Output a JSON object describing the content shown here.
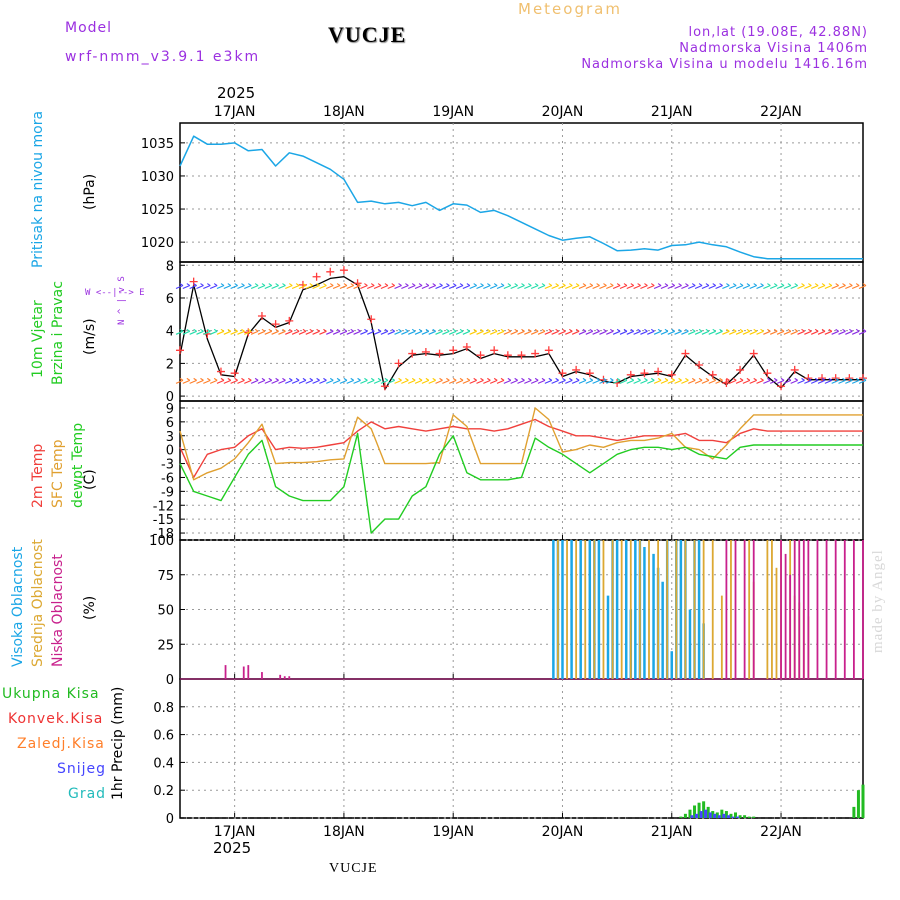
{
  "header": {
    "model_label": "Model",
    "model_name": "wrf-nmm_v3.9.1  e3km",
    "station": "VUCJE",
    "meteogram": "Meteogram",
    "lonlat": "lon,lat (19.08E, 42.88N)",
    "elevation": "Nadmorska Visina 1406m",
    "model_elevation": "Nadmorska Visina u modelu 1416.16m",
    "watermark": "made by Angel",
    "footer_station": "VUCJE"
  },
  "colors": {
    "pressure": "#1ba6e6",
    "gust": "#ff3b3b",
    "wind": "#000000",
    "t2m": "#f0403c",
    "sfc": "#e0a030",
    "dew": "#22cc22",
    "high": "#1ba6e6",
    "mid": "#dca832",
    "low": "#c8208c",
    "total": "#22bb22",
    "conv": "#ee3333",
    "frozen": "#ff7f2a",
    "snow": "#4545ff",
    "graupel": "#22bbbb",
    "grid": "#9a9a9a",
    "label_purple": "#9b30e0"
  },
  "axis": {
    "year": "2025",
    "dates": [
      "17JAN",
      "18JAN",
      "19JAN",
      "20JAN",
      "21JAN",
      "22JAN"
    ]
  },
  "chart_data": [
    {
      "type": "line",
      "id": "pressure",
      "title": "Pritisak na nivou mora",
      "ylabel": "(hPa)",
      "ylim": [
        1017,
        1038
      ],
      "yticks": [
        "1035",
        "1030",
        "1025",
        "1020"
      ],
      "x_hours": [
        0,
        3,
        6,
        9,
        12,
        15,
        18,
        21,
        24,
        27,
        30,
        33,
        36,
        39,
        42,
        45,
        48,
        51,
        54,
        57,
        60,
        63,
        66,
        69,
        72,
        75,
        78,
        81,
        84,
        87,
        90,
        93,
        96,
        99,
        102,
        105,
        108,
        111,
        114,
        117,
        120,
        123,
        126,
        129,
        132,
        135,
        138,
        141,
        144,
        147,
        150
      ],
      "values": [
        1031.5,
        1036.0,
        1034.8,
        1034.8,
        1035.0,
        1033.8,
        1034.0,
        1031.5,
        1033.5,
        1033.0,
        1032.0,
        1031.0,
        1029.5,
        1026.0,
        1026.2,
        1025.8,
        1026.0,
        1025.5,
        1026.0,
        1024.8,
        1025.8,
        1025.6,
        1024.5,
        1024.8,
        1024.0,
        1023.0,
        1022.0,
        1021.0,
        1020.3,
        1020.6,
        1020.8,
        1019.8,
        1018.7,
        1018.8,
        1019.0,
        1018.8,
        1019.5,
        1019.6,
        1020.0,
        1019.6,
        1019.3,
        1018.5,
        1017.8,
        1017.5,
        1017.5,
        1017.5,
        1017.5,
        1017.5,
        1017.5,
        1017.5,
        1017.5
      ]
    },
    {
      "type": "line",
      "id": "wind",
      "title": "10m Vjetar Brzina i Pravac",
      "ylabel": "(m/s)",
      "compass": "W <--|--> E",
      "compass_ns": "N ^ | v S",
      "ylim": [
        -0.3,
        8.2
      ],
      "yticks": [
        "8",
        "6",
        "4",
        "2",
        "0"
      ],
      "x_hours": [
        0,
        3,
        6,
        9,
        12,
        15,
        18,
        21,
        24,
        27,
        30,
        33,
        36,
        39,
        42,
        45,
        48,
        51,
        54,
        57,
        60,
        63,
        66,
        69,
        72,
        75,
        78,
        81,
        84,
        87,
        90,
        93,
        96,
        99,
        102,
        105,
        108,
        111,
        114,
        117,
        120,
        123,
        126,
        129,
        132,
        135,
        138,
        141,
        144,
        147,
        150
      ],
      "series": [
        {
          "name": "Wind speed",
          "values": [
            2.5,
            6.8,
            3.5,
            1.3,
            1.2,
            3.8,
            4.8,
            4.2,
            4.5,
            6.5,
            6.8,
            7.2,
            7.3,
            6.8,
            4.5,
            0.4,
            1.8,
            2.5,
            2.6,
            2.5,
            2.6,
            2.9,
            2.3,
            2.6,
            2.4,
            2.4,
            2.4,
            2.6,
            1.2,
            1.5,
            1.3,
            0.9,
            0.8,
            1.2,
            1.3,
            1.4,
            1.2,
            2.5,
            1.8,
            1.2,
            0.7,
            1.5,
            2.5,
            1.2,
            0.5,
            1.5,
            1.0,
            1.0,
            1.0,
            1.0,
            1.0
          ]
        },
        {
          "name": "Gust",
          "values": [
            2.8,
            7.0,
            3.8,
            1.5,
            1.4,
            3.9,
            4.9,
            4.4,
            4.6,
            6.8,
            7.3,
            7.6,
            7.7,
            6.9,
            4.7,
            0.6,
            2.0,
            2.6,
            2.7,
            2.6,
            2.8,
            3.0,
            2.5,
            2.8,
            2.5,
            2.5,
            2.6,
            2.8,
            1.4,
            1.6,
            1.4,
            1.0,
            0.8,
            1.3,
            1.4,
            1.5,
            1.3,
            2.6,
            1.9,
            1.3,
            0.8,
            1.6,
            2.6,
            1.4,
            0.6,
            1.6,
            1.1,
            1.1,
            1.1,
            1.1,
            1.1
          ]
        }
      ]
    },
    {
      "type": "line",
      "id": "temperature",
      "titles": [
        "2m Temp",
        "SFC Temp",
        "dewpt Temp"
      ],
      "ylabel": "(C)",
      "ylim": [
        -19.5,
        10.5
      ],
      "yticks": [
        "9",
        "6",
        "3",
        "0",
        "-3",
        "-6",
        "-9",
        "-12",
        "-15",
        "-18"
      ],
      "x_hours": [
        0,
        3,
        6,
        9,
        12,
        15,
        18,
        21,
        24,
        27,
        30,
        33,
        36,
        39,
        42,
        45,
        48,
        51,
        54,
        57,
        60,
        63,
        66,
        69,
        72,
        75,
        78,
        81,
        84,
        87,
        90,
        93,
        96,
        99,
        102,
        105,
        108,
        111,
        114,
        117,
        120,
        123,
        126,
        129,
        132,
        135,
        138,
        141,
        144,
        147,
        150
      ],
      "series": [
        {
          "name": "2m Temp",
          "values": [
            0.5,
            -6.0,
            -1.0,
            0.0,
            0.5,
            3.0,
            4.5,
            0.0,
            0.5,
            0.3,
            0.5,
            1.0,
            1.5,
            4.0,
            6.0,
            4.5,
            5.0,
            4.5,
            4.0,
            4.5,
            5.0,
            4.5,
            4.5,
            4.0,
            4.5,
            5.5,
            6.5,
            5.0,
            4.0,
            3.0,
            3.0,
            2.5,
            2.0,
            2.5,
            3.0,
            3.0,
            3.0,
            3.5,
            2.0,
            2.0,
            1.5,
            3.5,
            4.5,
            4.0,
            4.0,
            4.0,
            4.0,
            4.0,
            4.0,
            4.0,
            4.0
          ]
        },
        {
          "name": "SFC Temp",
          "values": [
            4.0,
            -6.5,
            -5.0,
            -4.0,
            -2.0,
            1.5,
            5.5,
            -3.0,
            -2.8,
            -2.8,
            -2.6,
            -2.2,
            -2.0,
            7.0,
            4.5,
            -3.0,
            -3.0,
            -3.0,
            -3.0,
            -2.8,
            7.5,
            5.0,
            -3.0,
            -3.0,
            -3.0,
            -3.0,
            9.0,
            6.5,
            -0.5,
            0.0,
            1.0,
            0.5,
            1.5,
            2.0,
            2.0,
            2.5,
            3.5,
            0.5,
            0.0,
            -2.0,
            1.0,
            4.5,
            7.5,
            7.5,
            7.5,
            7.5,
            7.5,
            7.5,
            7.5,
            7.5,
            7.5
          ]
        },
        {
          "name": "dewpt Temp",
          "values": [
            -3.0,
            -9.0,
            -10.0,
            -11.0,
            -6.0,
            -1.0,
            2.0,
            -8.0,
            -10.0,
            -11.0,
            -11.0,
            -11.0,
            -8.0,
            3.5,
            -18.0,
            -15.0,
            -15.0,
            -10.0,
            -8.0,
            -1.0,
            3.0,
            -5.0,
            -6.5,
            -6.5,
            -6.5,
            -6.0,
            2.5,
            0.5,
            -1.0,
            -3.0,
            -5.0,
            -3.0,
            -1.0,
            0.0,
            0.5,
            0.5,
            0.0,
            0.5,
            -1.0,
            -1.5,
            -2.0,
            0.5,
            1.0,
            1.0,
            1.0,
            1.0,
            1.0,
            1.0,
            1.0,
            1.0,
            1.0
          ]
        }
      ]
    },
    {
      "type": "bar",
      "id": "clouds",
      "titles": [
        "Visoka Oblacnost",
        "Srednja Oblacnost",
        "Niska Oblacnost"
      ],
      "ylabel": "(%)",
      "ylim": [
        0,
        100
      ],
      "yticks": [
        "100",
        "75",
        "50",
        "25",
        "0"
      ],
      "series": [
        {
          "name": "Visoka",
          "x_hours": [
            82,
            83,
            84,
            86,
            88,
            90,
            91,
            92,
            94,
            95,
            96,
            98,
            99,
            100,
            101,
            102,
            104,
            105,
            106,
            107,
            108,
            109,
            110,
            111,
            112,
            113,
            114,
            115
          ],
          "values": [
            100,
            100,
            100,
            100,
            100,
            100,
            100,
            100,
            60,
            100,
            100,
            100,
            50,
            100,
            100,
            95,
            90,
            80,
            70,
            100,
            20,
            100,
            100,
            100,
            50,
            100,
            100,
            40
          ]
        },
        {
          "name": "Srednja",
          "x_hours": [
            83,
            85,
            87,
            89,
            91,
            93,
            95,
            97,
            99,
            101,
            103,
            105,
            107,
            109,
            111,
            113,
            115,
            117,
            119,
            121,
            125,
            126,
            129,
            130,
            131,
            132,
            134,
            135,
            136,
            137,
            138
          ],
          "values": [
            100,
            100,
            100,
            100,
            100,
            100,
            100,
            100,
            100,
            100,
            100,
            100,
            100,
            100,
            100,
            100,
            100,
            100,
            60,
            100,
            100,
            70,
            100,
            100,
            80,
            100,
            100,
            60,
            55,
            50,
            45
          ]
        },
        {
          "name": "Niska",
          "x_hours": [
            10,
            14,
            15,
            18,
            22,
            23,
            24,
            120,
            122,
            124,
            126,
            132,
            133,
            134,
            135,
            136,
            137,
            138,
            140,
            142,
            144,
            146,
            148,
            150
          ],
          "values": [
            10,
            9,
            10,
            5,
            3,
            2,
            2,
            100,
            100,
            100,
            100,
            100,
            90,
            75,
            100,
            100,
            100,
            100,
            100,
            100,
            100,
            100,
            100,
            100
          ]
        }
      ]
    },
    {
      "type": "bar",
      "id": "precip",
      "titles": [
        "Ukupna Kisa",
        "Konvek.Kisa",
        "Zaledj.Kisa",
        "Snijeg",
        "Grad"
      ],
      "ylabel": "1hr Precip (mm)",
      "ylim": [
        0,
        1.0
      ],
      "yticks": [
        "0.8",
        "0.6",
        "0.4",
        "0.2",
        "0"
      ],
      "series": [
        {
          "name": "Ukupna Kisa",
          "x_hours": [
            110,
            111,
            112,
            113,
            114,
            115,
            116,
            117,
            118,
            119,
            120,
            121,
            122,
            123,
            124,
            125,
            126,
            148,
            149,
            150
          ],
          "values": [
            0.01,
            0.03,
            0.06,
            0.09,
            0.11,
            0.12,
            0.08,
            0.05,
            0.04,
            0.06,
            0.05,
            0.03,
            0.04,
            0.02,
            0.02,
            0.01,
            0.01,
            0.08,
            0.2,
            0.24
          ]
        },
        {
          "name": "Snijeg",
          "x_hours": [
            112,
            113,
            114,
            115,
            116,
            117,
            118,
            119,
            120,
            121,
            122
          ],
          "values": [
            0.02,
            0.03,
            0.05,
            0.06,
            0.04,
            0.03,
            0.02,
            0.03,
            0.02,
            0.01,
            0.01
          ]
        }
      ]
    }
  ]
}
